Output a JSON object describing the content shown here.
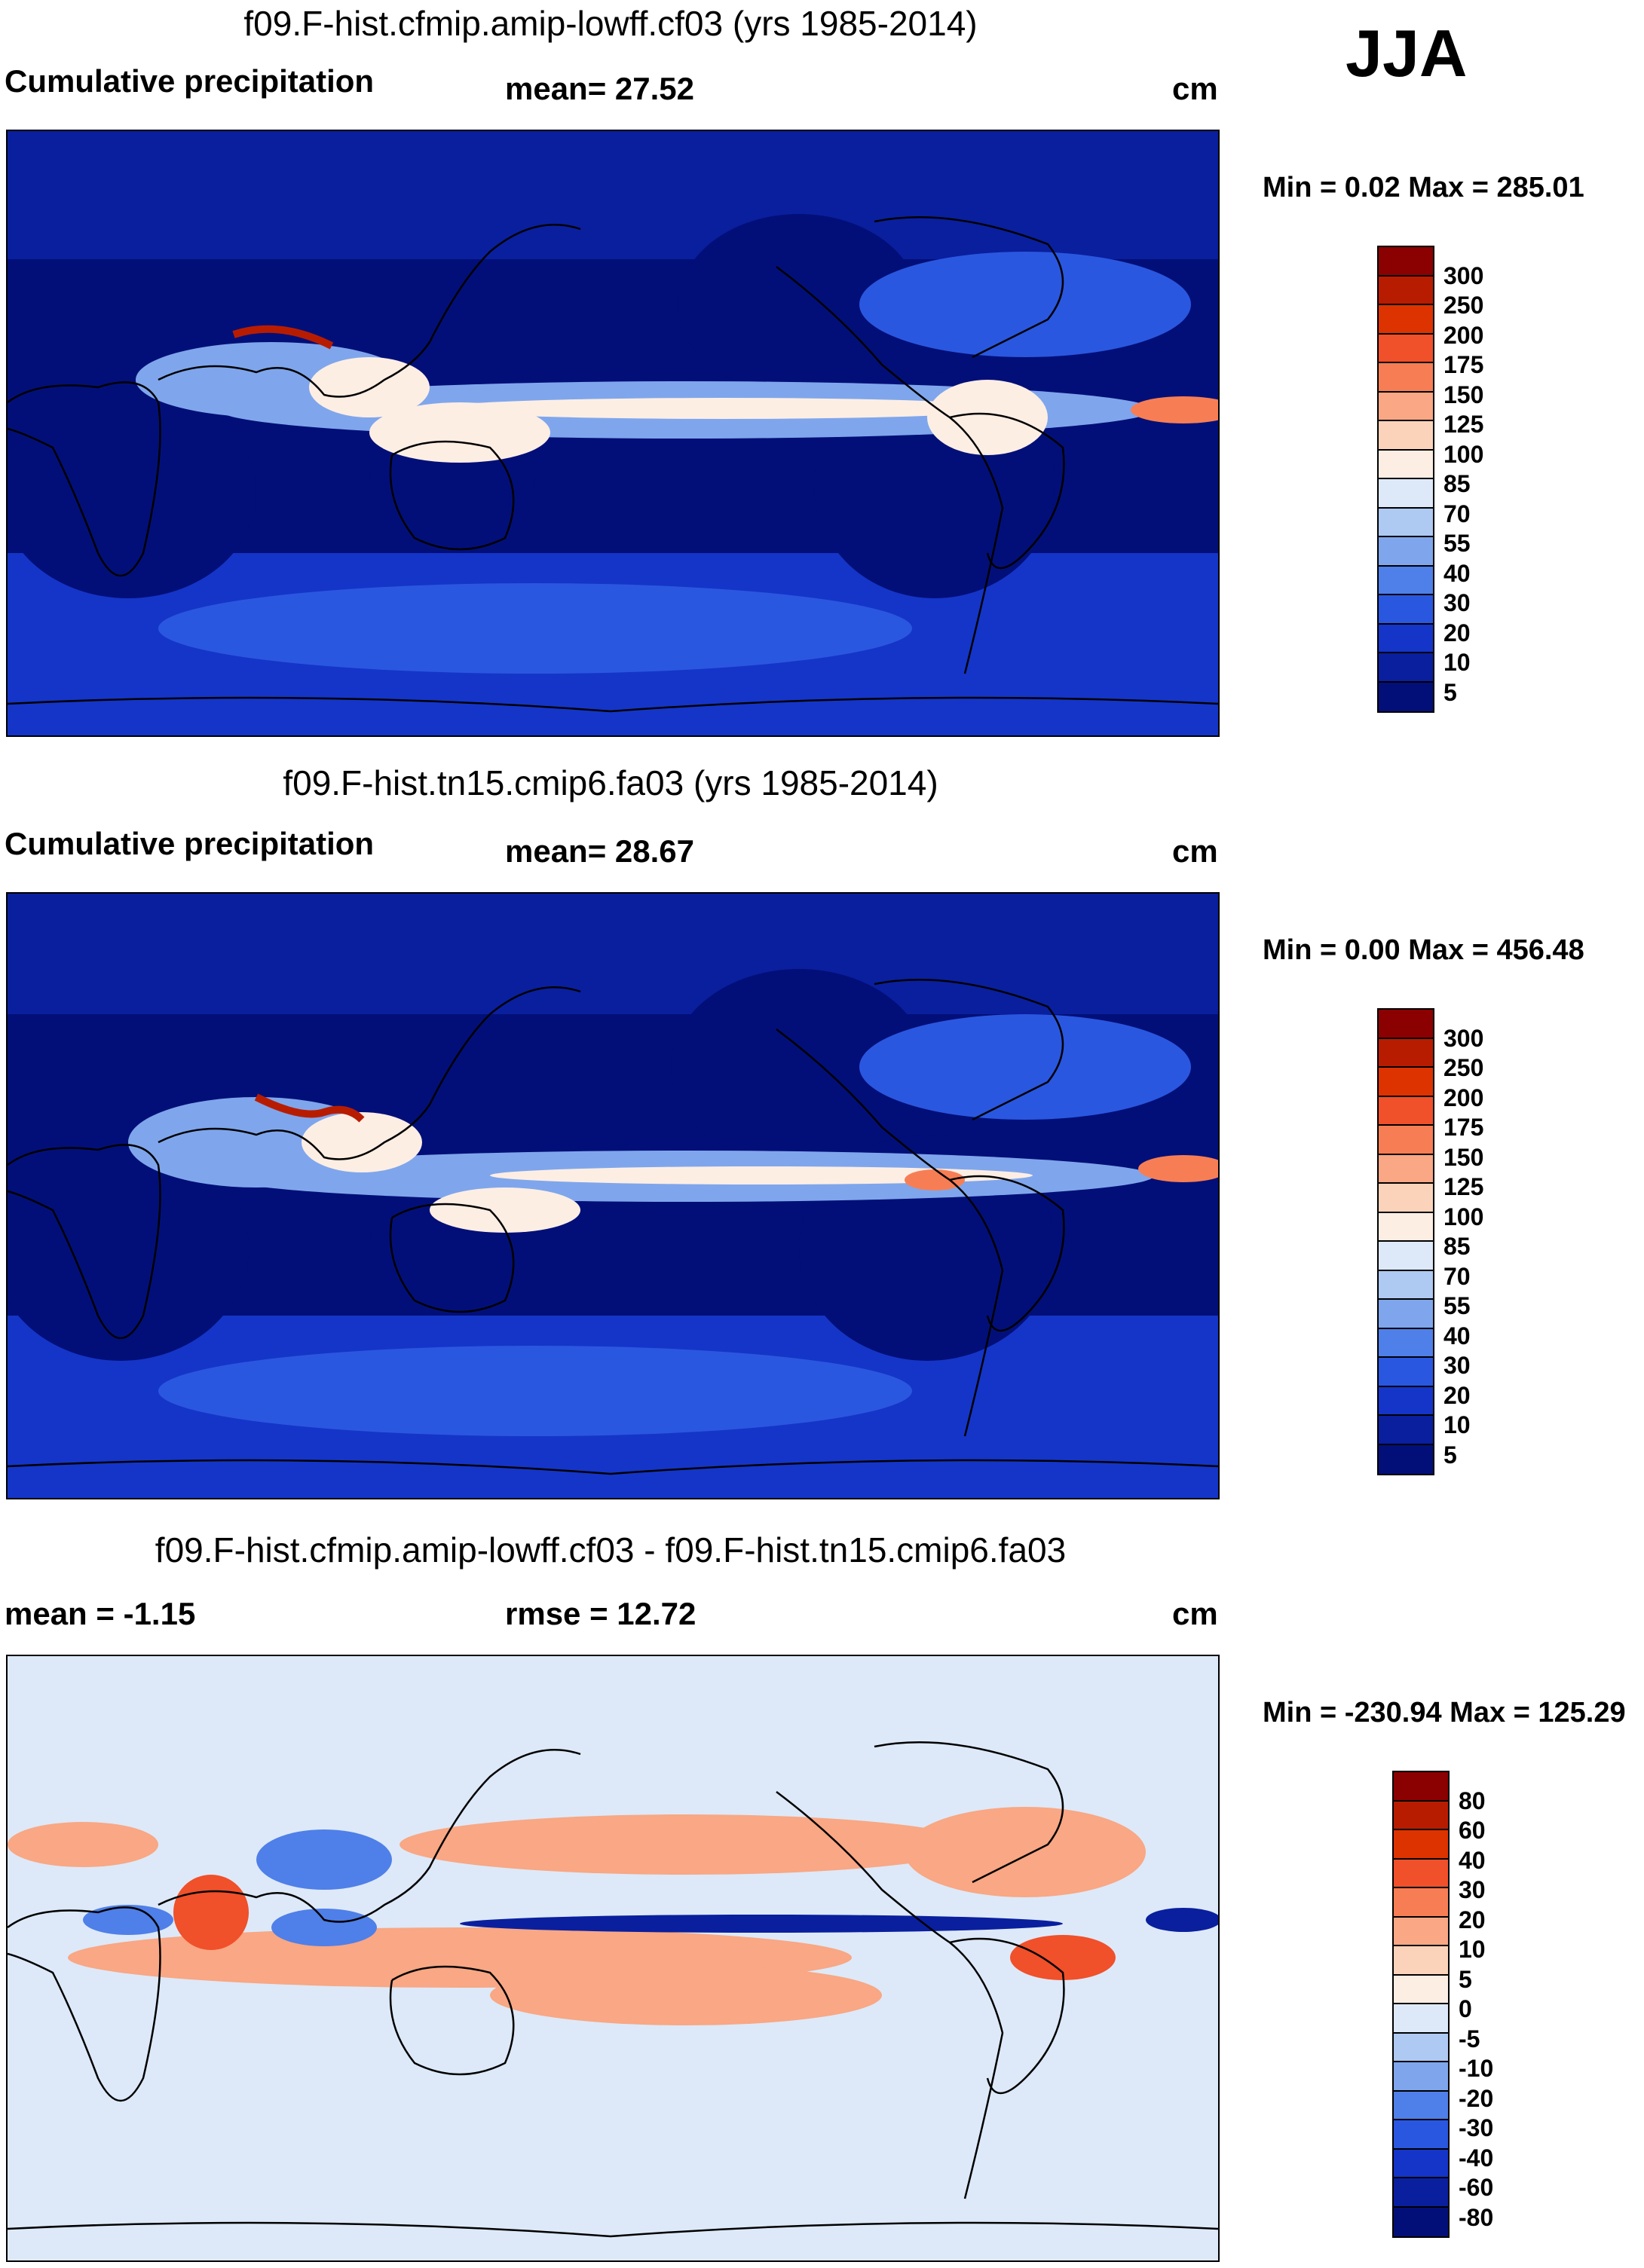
{
  "season": "JJA",
  "panels": [
    {
      "title": "f09.F-hist.cfmip.amip-lowff.cf03 (yrs 1985-2014)",
      "left_label": "Cumulative precipitation",
      "mid_label": "mean=  27.52",
      "unit": "cm",
      "minmax": "Min =   0.02 Max = 285.01"
    },
    {
      "title": "f09.F-hist.tn15.cmip6.fa03 (yrs 1985-2014)",
      "left_label": "Cumulative precipitation",
      "mid_label": "mean=  28.67",
      "unit": "cm",
      "minmax": "Min =   0.00 Max = 456.48"
    },
    {
      "title": "f09.F-hist.cfmip.amip-lowff.cf03 - f09.F-hist.tn15.cmip6.fa03",
      "left_label": "mean =  -1.15",
      "mid_label": "rmse =  12.72",
      "unit": "cm",
      "minmax": "Min = -230.94 Max = 125.29"
    }
  ],
  "colorbars": {
    "precip": {
      "labels": [
        "300",
        "250",
        "200",
        "175",
        "150",
        "125",
        "100",
        "85",
        "70",
        "55",
        "40",
        "30",
        "20",
        "10",
        "5"
      ],
      "colors": [
        "#8b0000",
        "#b81c00",
        "#dd3300",
        "#f0502a",
        "#f77e54",
        "#f9a784",
        "#fbd3bb",
        "#fdeee4",
        "#dde9f8",
        "#aec9f2",
        "#7fa6ec",
        "#4f7fe8",
        "#2a57e0",
        "#1535c8",
        "#0a1f9e",
        "#030f78"
      ]
    },
    "diff": {
      "labels": [
        "80",
        "60",
        "40",
        "30",
        "20",
        "10",
        "5",
        "0",
        "-5",
        "-10",
        "-20",
        "-30",
        "-40",
        "-60",
        "-80"
      ],
      "colors": [
        "#8b0000",
        "#b81c00",
        "#dd3300",
        "#f0502a",
        "#f77e54",
        "#f9a784",
        "#fbd3bb",
        "#fdeee4",
        "#dde9f8",
        "#aec9f2",
        "#7fa6ec",
        "#4f7fe8",
        "#2a57e0",
        "#1535c8",
        "#0a1f9e",
        "#030f78"
      ]
    }
  },
  "map_colors": {
    "dry": "#030f78",
    "low": "#0a1f9e",
    "mid": "#1535c8",
    "wetish": "#2a57e0",
    "wet": "#7fa6ec",
    "wetter": "#fdeee4",
    "wettest": "#f77e54",
    "peak": "#b81c00",
    "diff_bg": "#dde9f8",
    "diff_pos": "#f9a784",
    "diff_pos2": "#f0502a",
    "diff_neg": "#4f7fe8",
    "diff_neg2": "#0a1f9e"
  }
}
